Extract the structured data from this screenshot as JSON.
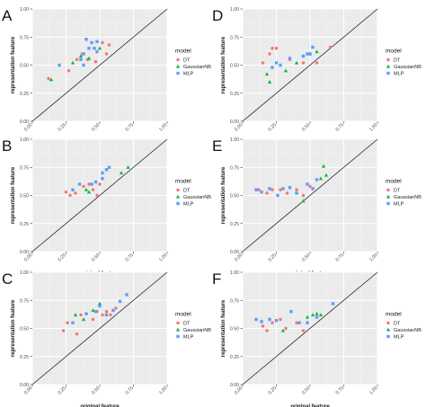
{
  "legend": {
    "title": "model",
    "items": [
      {
        "name": "DT",
        "color": "#F8766D",
        "shape": "circle"
      },
      {
        "name": "GaussianNB",
        "color": "#00BA38",
        "shape": "triangle"
      },
      {
        "name": "MLP",
        "color": "#619CFF",
        "shape": "square"
      }
    ]
  },
  "chart_data": [
    {
      "panel": "A",
      "type": "scatter",
      "xlabel": "original feature",
      "ylabel": "representation feature",
      "xlim": [
        0,
        1
      ],
      "ylim": [
        0,
        1
      ],
      "xticks": [
        "0.00",
        "0.25",
        "0.50",
        "0.75",
        "1.00"
      ],
      "yticks": [
        "0.00",
        "0.25",
        "0.50",
        "0.75",
        "1.00"
      ],
      "reference_line": "y = x",
      "grid": true,
      "legend_position": "right",
      "series": [
        {
          "name": "DT",
          "x": [
            0.12,
            0.27,
            0.33,
            0.37,
            0.41,
            0.47,
            0.55,
            0.57,
            0.52
          ],
          "y": [
            0.38,
            0.45,
            0.55,
            0.6,
            0.55,
            0.53,
            0.6,
            0.68,
            0.7
          ]
        },
        {
          "name": "GaussianNB",
          "x": [
            0.14,
            0.3,
            0.36,
            0.42,
            0.5
          ],
          "y": [
            0.37,
            0.52,
            0.58,
            0.56,
            0.65
          ]
        },
        {
          "name": "MLP",
          "x": [
            0.2,
            0.36,
            0.38,
            0.4,
            0.42,
            0.44,
            0.46,
            0.48,
            0.38,
            0.48
          ],
          "y": [
            0.5,
            0.55,
            0.6,
            0.73,
            0.65,
            0.7,
            0.65,
            0.62,
            0.5,
            0.71
          ]
        }
      ]
    },
    {
      "panel": "B",
      "type": "scatter",
      "xlabel": "original feature",
      "ylabel": "representation feature",
      "xlim": [
        0,
        1
      ],
      "ylim": [
        0,
        1
      ],
      "xticks": [
        "0.00",
        "0.25",
        "0.50",
        "0.75",
        "1.00"
      ],
      "yticks": [
        "0.00",
        "0.25",
        "0.50",
        "0.75",
        "1.00"
      ],
      "reference_line": "y = x",
      "grid": true,
      "legend_position": "right",
      "series": [
        {
          "name": "DT",
          "x": [
            0.25,
            0.28,
            0.32,
            0.38,
            0.42,
            0.45,
            0.48,
            0.5
          ],
          "y": [
            0.53,
            0.5,
            0.52,
            0.58,
            0.6,
            0.55,
            0.5,
            0.6
          ]
        },
        {
          "name": "GaussianNB",
          "x": [
            0.4,
            0.42,
            0.66,
            0.71
          ],
          "y": [
            0.55,
            0.53,
            0.7,
            0.75
          ]
        },
        {
          "name": "MLP",
          "x": [
            0.3,
            0.35,
            0.44,
            0.52,
            0.55,
            0.57,
            0.52,
            0.47
          ],
          "y": [
            0.55,
            0.6,
            0.6,
            0.7,
            0.73,
            0.75,
            0.65,
            0.62
          ]
        }
      ]
    },
    {
      "panel": "C",
      "type": "scatter",
      "xlabel": "original feature",
      "ylabel": "representation feature",
      "xlim": [
        0,
        1
      ],
      "ylim": [
        0,
        1
      ],
      "xticks": [
        "0.00",
        "0.25",
        "0.50",
        "0.75",
        "1.00"
      ],
      "yticks": [
        "0.00",
        "0.25",
        "0.50",
        "0.75",
        "1.00"
      ],
      "reference_line": "y = x",
      "grid": true,
      "legend_position": "right",
      "series": [
        {
          "name": "DT",
          "x": [
            0.23,
            0.26,
            0.33,
            0.36,
            0.45,
            0.48,
            0.52,
            0.55,
            0.58,
            0.62
          ],
          "y": [
            0.48,
            0.55,
            0.45,
            0.62,
            0.58,
            0.65,
            0.62,
            0.65,
            0.62,
            0.68
          ]
        },
        {
          "name": "GaussianNB",
          "x": [
            0.32,
            0.38,
            0.45,
            0.5
          ],
          "y": [
            0.62,
            0.58,
            0.66,
            0.72
          ]
        },
        {
          "name": "MLP",
          "x": [
            0.3,
            0.4,
            0.47,
            0.5,
            0.55,
            0.6,
            0.65,
            0.7
          ],
          "y": [
            0.55,
            0.63,
            0.65,
            0.7,
            0.62,
            0.66,
            0.74,
            0.8
          ]
        }
      ]
    },
    {
      "panel": "D",
      "type": "scatter",
      "xlabel": "original feature",
      "ylabel": "representation feature",
      "xlim": [
        0,
        1
      ],
      "ylim": [
        0,
        1
      ],
      "xticks": [
        "0.00",
        "0.25",
        "0.50",
        "0.75",
        "1.00"
      ],
      "yticks": [
        "0.00",
        "0.25",
        "0.50",
        "0.75",
        "1.00"
      ],
      "reference_line": "y = x",
      "grid": true,
      "legend_position": "right",
      "series": [
        {
          "name": "DT",
          "x": [
            0.15,
            0.2,
            0.22,
            0.25,
            0.35,
            0.45,
            0.55,
            0.65
          ],
          "y": [
            0.52,
            0.6,
            0.65,
            0.65,
            0.55,
            0.52,
            0.52,
            0.66
          ]
        },
        {
          "name": "GaussianNB",
          "x": [
            0.18,
            0.2,
            0.32,
            0.4,
            0.5,
            0.55
          ],
          "y": [
            0.42,
            0.35,
            0.45,
            0.52,
            0.6,
            0.62
          ]
        },
        {
          "name": "MLP",
          "x": [
            0.22,
            0.25,
            0.28,
            0.35,
            0.45,
            0.48,
            0.5,
            0.52
          ],
          "y": [
            0.48,
            0.52,
            0.5,
            0.56,
            0.58,
            0.6,
            0.6,
            0.66
          ]
        }
      ]
    },
    {
      "panel": "E",
      "type": "scatter",
      "xlabel": "original feature",
      "ylabel": "representation feature",
      "xlim": [
        0,
        1
      ],
      "ylim": [
        0,
        1
      ],
      "xticks": [
        "0.00",
        "0.25",
        "0.50",
        "0.75",
        "1.00"
      ],
      "yticks": [
        "0.00",
        "0.25",
        "0.50",
        "0.75",
        "1.00"
      ],
      "reference_line": "y = x",
      "grid": true,
      "legend_position": "right",
      "series": [
        {
          "name": "DT",
          "x": [
            0.12,
            0.18,
            0.22,
            0.28,
            0.33,
            0.4,
            0.45,
            0.5
          ],
          "y": [
            0.55,
            0.52,
            0.55,
            0.55,
            0.52,
            0.55,
            0.5,
            0.58
          ]
        },
        {
          "name": "GaussianNB",
          "x": [
            0.45,
            0.58,
            0.6,
            0.62
          ],
          "y": [
            0.45,
            0.65,
            0.76,
            0.68
          ]
        },
        {
          "name": "MLP",
          "x": [
            0.1,
            0.14,
            0.2,
            0.26,
            0.3,
            0.35,
            0.4,
            0.48,
            0.52,
            0.55
          ],
          "y": [
            0.55,
            0.53,
            0.56,
            0.5,
            0.56,
            0.57,
            0.52,
            0.6,
            0.56,
            0.64
          ]
        }
      ]
    },
    {
      "panel": "F",
      "type": "scatter",
      "xlabel": "original feature",
      "ylabel": "representation feature",
      "xlim": [
        0,
        1
      ],
      "ylim": [
        0,
        1
      ],
      "xticks": [
        "0.00",
        "0.25",
        "0.50",
        "0.75",
        "1.00"
      ],
      "yticks": [
        "0.00",
        "0.25",
        "0.50",
        "0.75",
        "1.00"
      ],
      "reference_line": "y = x",
      "grid": true,
      "legend_position": "right",
      "series": [
        {
          "name": "DT",
          "x": [
            0.15,
            0.18,
            0.22,
            0.28,
            0.32,
            0.4,
            0.45
          ],
          "y": [
            0.52,
            0.48,
            0.55,
            0.58,
            0.5,
            0.55,
            0.48
          ]
        },
        {
          "name": "GaussianNB",
          "x": [
            0.3,
            0.48,
            0.52,
            0.55,
            0.58
          ],
          "y": [
            0.48,
            0.6,
            0.62,
            0.63,
            0.62
          ]
        },
        {
          "name": "MLP",
          "x": [
            0.1,
            0.14,
            0.2,
            0.25,
            0.36,
            0.42,
            0.48,
            0.55,
            0.67
          ],
          "y": [
            0.58,
            0.56,
            0.58,
            0.57,
            0.65,
            0.55,
            0.55,
            0.6,
            0.72
          ]
        }
      ]
    }
  ]
}
